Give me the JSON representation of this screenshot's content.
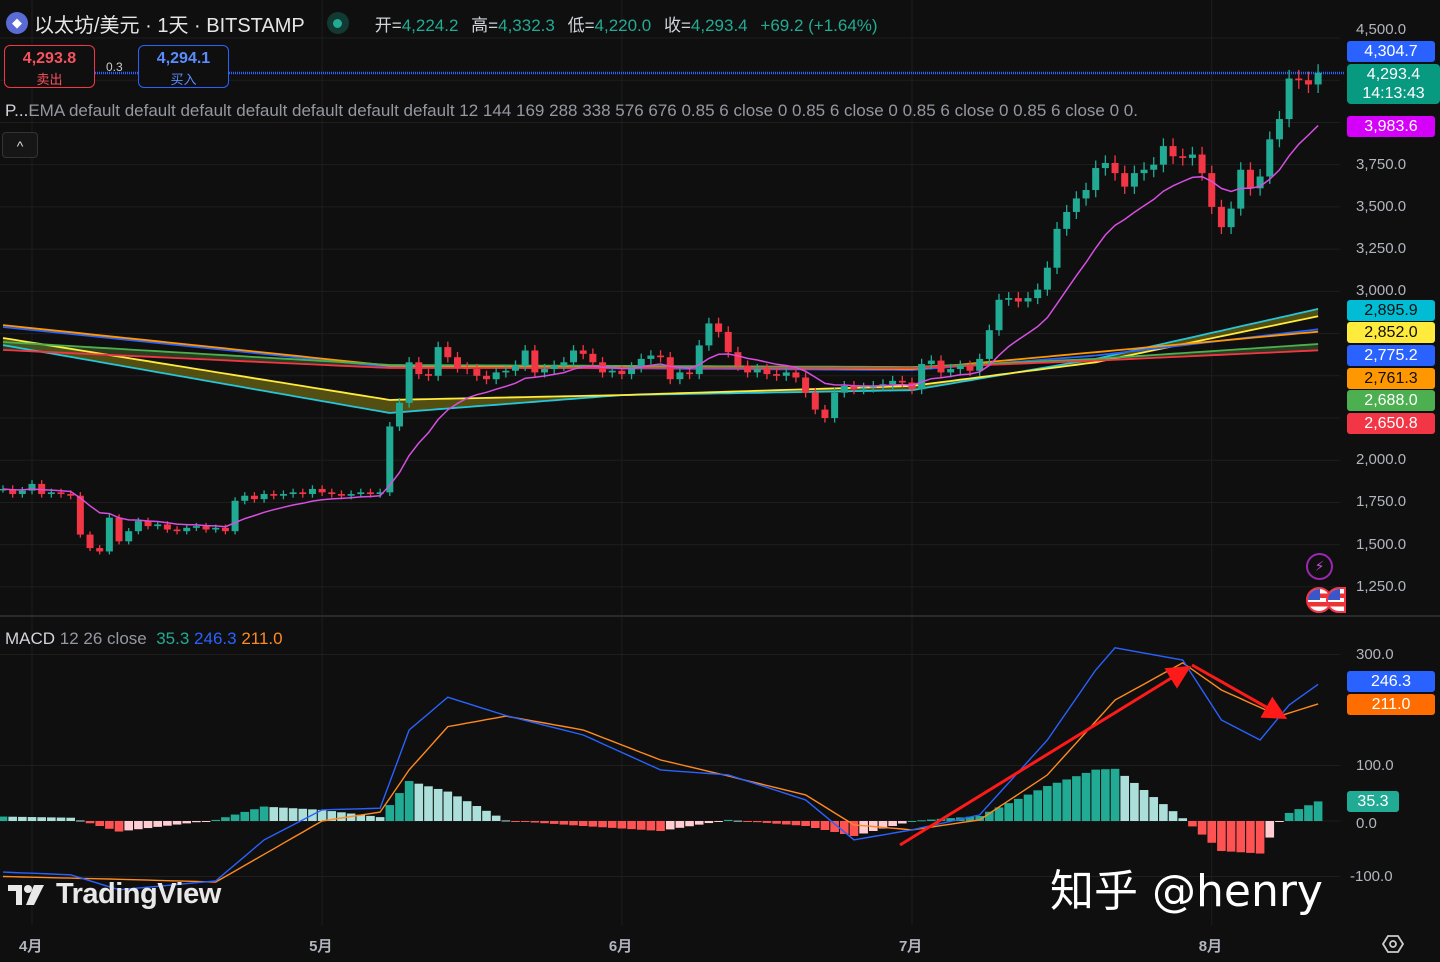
{
  "header": {
    "symbol_icon": "ethereum-icon",
    "title": "以太坊/美元 · 1天 · BITSTAMP",
    "market_status": "open",
    "ohlc": [
      {
        "k": "开=",
        "v": "4,224.2"
      },
      {
        "k": "高=",
        "v": "4,332.3"
      },
      {
        "k": "低=",
        "v": "4,220.0"
      },
      {
        "k": "收=",
        "v": "4,293.4"
      }
    ],
    "change": "+69.2 (+1.64%)"
  },
  "trade": {
    "sell_price": "4,293.8",
    "sell_label": "卖出",
    "spread": "0.3",
    "buy_price": "4,294.1",
    "buy_label": "买入"
  },
  "indicator_legend": {
    "short": "P...",
    "params": "EMA default default default default default default default 12 144 169 288 338 576 676 0.85 6 close 0 0.85 6 close 0 0.85 6 close 0 0.85 6 close 0 0."
  },
  "collapse_icon": "chevron-up-icon",
  "macd_legend": {
    "name": "MACD",
    "params": "12 26 close",
    "hist": "35.3",
    "macd": "246.3",
    "signal": "211.0"
  },
  "watermark": {
    "logo": "TradingView",
    "author": "知乎 @henry"
  },
  "colors": {
    "up": "#22ab94",
    "down": "#f23645",
    "ema12": "#d64fe0",
    "macd": "#2962ff",
    "signal": "#ff8a1f",
    "hist_up": "#22ab94",
    "hist_up_fading": "#acdfd9",
    "hist_down": "#ff5252",
    "hist_down_fading": "#ffcdd2",
    "bid_line": "#2962ff",
    "annotation": "#ff1a1a"
  },
  "chart_data": {
    "type": "candlestick",
    "date_range": [
      "03-29",
      "08-12"
    ],
    "close": [
      1830,
      1800,
      1820,
      1860,
      1800,
      1810,
      1800,
      1790,
      1560,
      1480,
      1460,
      1660,
      1520,
      1580,
      1640,
      1610,
      1620,
      1590,
      1580,
      1600,
      1610,
      1590,
      1600,
      1580,
      1760,
      1790,
      1770,
      1800,
      1790,
      1800,
      1810,
      1800,
      1830,
      1810,
      1800,
      1790,
      1800,
      1810,
      1800,
      1810,
      2200,
      2340,
      2580,
      2510,
      2500,
      2670,
      2610,
      2550,
      2540,
      2500,
      2480,
      2520,
      2530,
      2560,
      2650,
      2520,
      2540,
      2560,
      2580,
      2650,
      2630,
      2580,
      2520,
      2530,
      2510,
      2550,
      2600,
      2620,
      2610,
      2480,
      2520,
      2510,
      2680,
      2810,
      2760,
      2640,
      2560,
      2520,
      2540,
      2510,
      2500,
      2520,
      2490,
      2400,
      2300,
      2250,
      2400,
      2440,
      2420,
      2430,
      2440,
      2450,
      2470,
      2460,
      2420,
      2570,
      2590,
      2520,
      2540,
      2560,
      2530,
      2600,
      2770,
      2950,
      2960,
      2940,
      2960,
      3010,
      3140,
      3370,
      3470,
      3550,
      3600,
      3730,
      3760,
      3700,
      3620,
      3700,
      3720,
      3750,
      3860,
      3800,
      3790,
      3810,
      3700,
      3500,
      3380,
      3490,
      3720,
      3610,
      3680,
      3900,
      4020,
      4260,
      4250,
      4225,
      4293.4
    ],
    "price_axis": {
      "ticks": [
        "4,500.0",
        "3,750.0",
        "3,500.0",
        "3,250.0",
        "3,000.0",
        "2,000.0",
        "1,750.0",
        "1,500.0",
        "1,250.0"
      ],
      "range": [
        1250,
        4500
      ],
      "step": 250
    },
    "time_axis": {
      "ticks": [
        {
          "label": "4月",
          "date": "04-01"
        },
        {
          "label": "5月",
          "date": "05-01"
        },
        {
          "label": "6月",
          "date": "06-01"
        },
        {
          "label": "7月",
          "date": "07-01"
        },
        {
          "label": "8月",
          "date": "08-01"
        }
      ]
    },
    "price_tags": [
      {
        "label": "4,304.7",
        "value": 4304.7,
        "bg": "#2962ff",
        "fg": "#ffffff"
      },
      {
        "label": "4,293.4",
        "sub": "14:13:43",
        "value": 4293.4,
        "bg": "#089981",
        "fg": "#ffffff"
      },
      {
        "label": "3,983.6",
        "value": 3983.6,
        "bg": "#d500f9",
        "fg": "#ffffff"
      },
      {
        "label": "2,895.9",
        "value": 2895.9,
        "bg": "#00bcd4",
        "fg": "#0f0f0f"
      },
      {
        "label": "2,852.0",
        "value": 2852.0,
        "bg": "#ffeb3b",
        "fg": "#0f0f0f"
      },
      {
        "label": "2,775.2",
        "value": 2775.2,
        "bg": "#2962ff",
        "fg": "#ffffff"
      },
      {
        "label": "2,761.3",
        "value": 2761.3,
        "bg": "#ff9800",
        "fg": "#0f0f0f"
      },
      {
        "label": "2,688.0",
        "value": 2688.0,
        "bg": "#4caf50",
        "fg": "#ffffff"
      },
      {
        "label": "2,650.8",
        "value": 2650.8,
        "bg": "#f23645",
        "fg": "#ffffff"
      }
    ],
    "ema_lines": [
      {
        "color": "#26c6da",
        "points": [
          [
            "03-29",
            2682
          ],
          [
            "05-08",
            2280
          ],
          [
            "06-01",
            2386
          ],
          [
            "07-01",
            2415
          ],
          [
            "07-20",
            2600
          ],
          [
            "08-12",
            2895.9
          ]
        ]
      },
      {
        "color": "#ffeb3b",
        "points": [
          [
            "03-29",
            2724
          ],
          [
            "05-08",
            2357
          ],
          [
            "06-01",
            2386
          ],
          [
            "07-01",
            2440
          ],
          [
            "07-20",
            2580
          ],
          [
            "08-12",
            2852.0
          ]
        ]
      },
      {
        "color": "#2962ff",
        "points": [
          [
            "03-29",
            2789
          ],
          [
            "05-08",
            2552
          ],
          [
            "07-01",
            2534
          ],
          [
            "07-20",
            2620
          ],
          [
            "08-12",
            2775.2
          ]
        ]
      },
      {
        "color": "#ff9800",
        "points": [
          [
            "03-29",
            2800
          ],
          [
            "05-08",
            2560
          ],
          [
            "07-01",
            2540
          ],
          [
            "07-20",
            2640
          ],
          [
            "08-12",
            2761.3
          ]
        ]
      },
      {
        "color": "#4caf50",
        "points": [
          [
            "03-29",
            2700
          ],
          [
            "05-08",
            2564
          ],
          [
            "07-01",
            2552
          ],
          [
            "07-20",
            2600
          ],
          [
            "08-12",
            2688.0
          ]
        ]
      },
      {
        "color": "#f23645",
        "points": [
          [
            "03-29",
            2653
          ],
          [
            "05-08",
            2546
          ],
          [
            "07-01",
            2546
          ],
          [
            "07-20",
            2590
          ],
          [
            "08-12",
            2650.8
          ]
        ]
      }
    ],
    "ema12": {
      "period": 12,
      "last": 3983.6
    },
    "macd": {
      "axis": {
        "ticks": [
          "300.0",
          "100.0",
          "0.0",
          "-100.0"
        ],
        "values": [
          300,
          100,
          0,
          -100
        ]
      },
      "macd_line": [
        [
          "03-29",
          -92
        ],
        [
          "04-05",
          -97
        ],
        [
          "04-10",
          -124
        ],
        [
          "04-20",
          -108
        ],
        [
          "04-25",
          -34
        ],
        [
          "05-01",
          20
        ],
        [
          "05-07",
          23
        ],
        [
          "05-10",
          164
        ],
        [
          "05-14",
          223
        ],
        [
          "05-20",
          190
        ],
        [
          "05-28",
          155
        ],
        [
          "06-05",
          92
        ],
        [
          "06-12",
          83
        ],
        [
          "06-20",
          38
        ],
        [
          "06-25",
          -34
        ],
        [
          "07-01",
          -16
        ],
        [
          "07-08",
          11
        ],
        [
          "07-15",
          146
        ],
        [
          "07-20",
          272
        ],
        [
          "07-22",
          312
        ],
        [
          "07-29",
          290
        ],
        [
          "08-02",
          182
        ],
        [
          "08-06",
          146
        ],
        [
          "08-09",
          209
        ],
        [
          "08-12",
          246.3
        ]
      ],
      "signal_line": [
        [
          "03-29",
          -100
        ],
        [
          "04-10",
          -105
        ],
        [
          "04-20",
          -110
        ],
        [
          "05-01",
          0
        ],
        [
          "05-07",
          16
        ],
        [
          "05-10",
          92
        ],
        [
          "05-14",
          170
        ],
        [
          "05-20",
          189
        ],
        [
          "05-28",
          164
        ],
        [
          "06-05",
          110
        ],
        [
          "06-12",
          81
        ],
        [
          "06-20",
          47
        ],
        [
          "06-25",
          -7
        ],
        [
          "07-01",
          -16
        ],
        [
          "07-08",
          2
        ],
        [
          "07-15",
          83
        ],
        [
          "07-22",
          218
        ],
        [
          "07-29",
          285
        ],
        [
          "08-02",
          236
        ],
        [
          "08-08",
          189
        ],
        [
          "08-12",
          211.0
        ]
      ],
      "tags": [
        {
          "label": "246.3",
          "bg": "#2962ff",
          "value": 246.3
        },
        {
          "label": "211.0",
          "bg": "#ff6d00",
          "value": 211.0
        },
        {
          "label": "35.3",
          "bg": "#22ab94",
          "value": 35.3
        }
      ]
    }
  }
}
